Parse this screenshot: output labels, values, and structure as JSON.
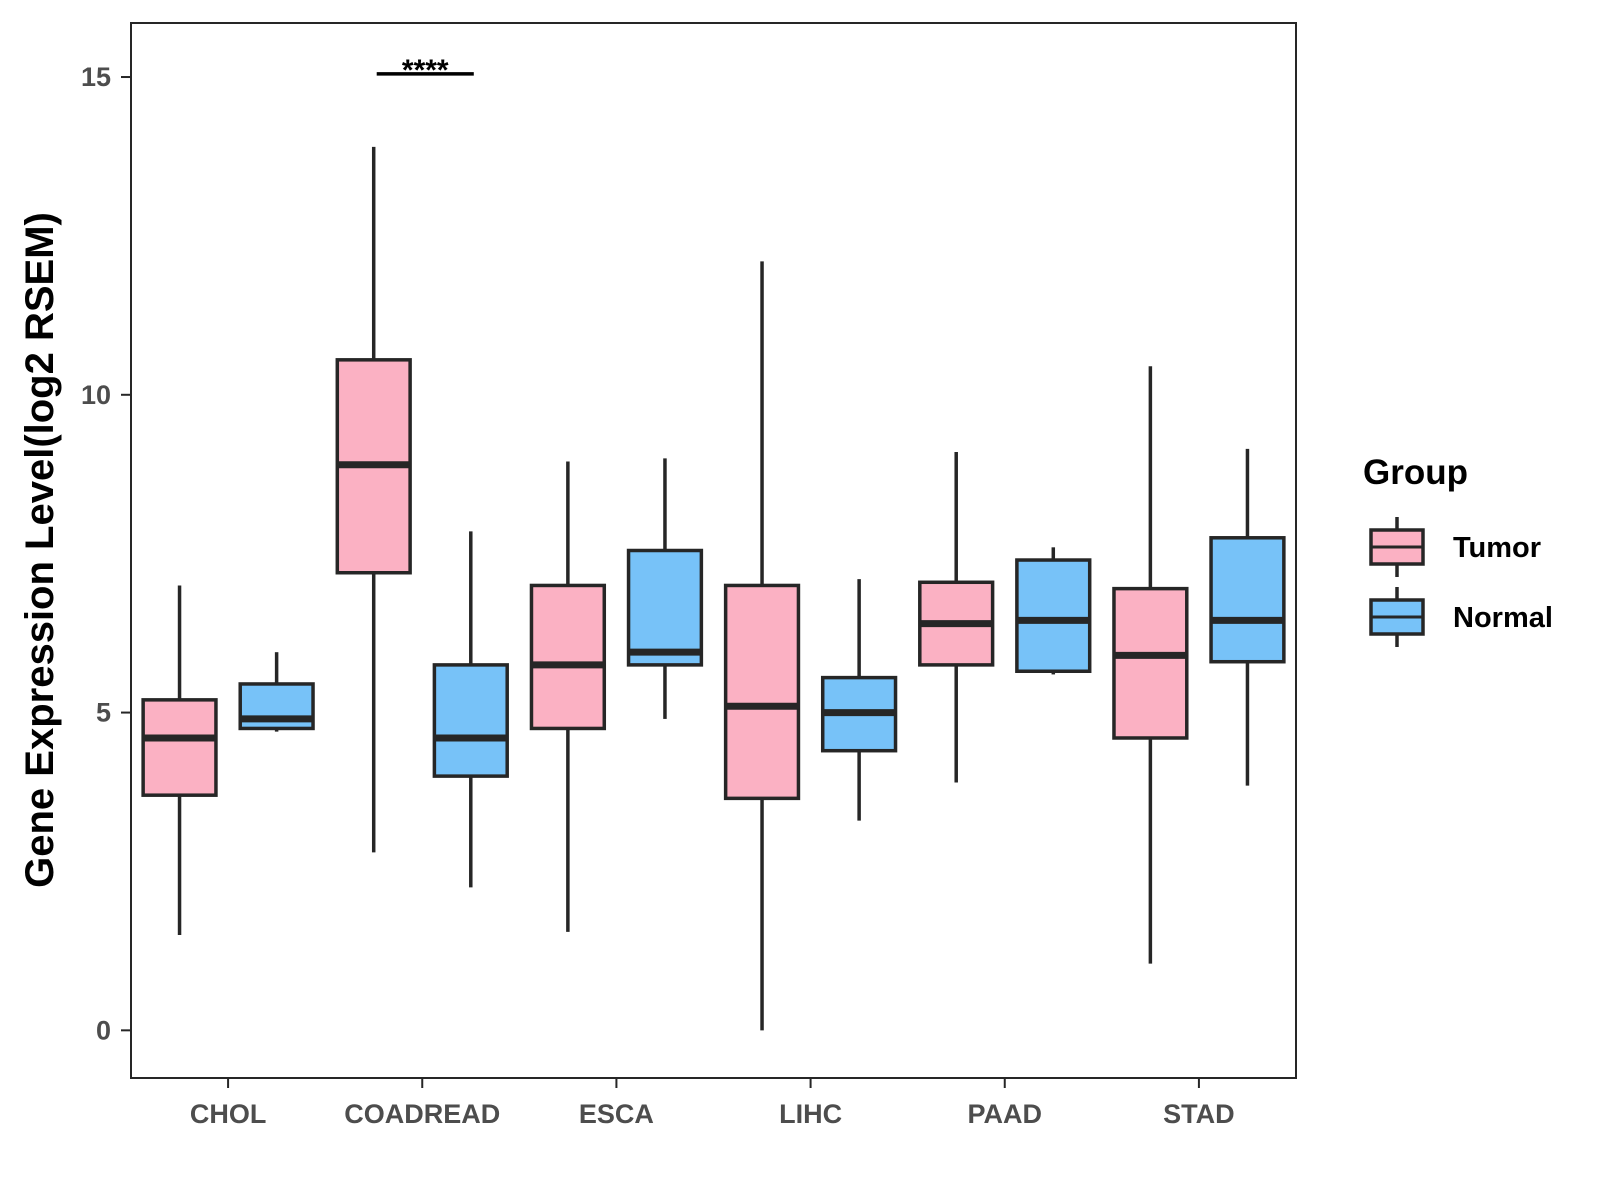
{
  "chart_data": {
    "type": "boxplot",
    "title": "",
    "xlabel": "",
    "ylabel": "Gene Expression Level(log2 RSEM)",
    "ylim": [
      -0.75,
      15.85
    ],
    "yticks": [
      0,
      5,
      10,
      15
    ],
    "ytick_labels": [
      "0",
      "5",
      "10",
      "15"
    ],
    "grid": false,
    "categories": [
      "CHOL",
      "COADREAD",
      "ESCA",
      "LIHC",
      "PAAD",
      "STAD"
    ],
    "legend": {
      "title": "Group",
      "position": "right",
      "entries": [
        "Tumor",
        "Normal"
      ]
    },
    "colors": {
      "Tumor": "#fbb1c3",
      "Normal": "#77c2f8",
      "outline": "#262626"
    },
    "series": [
      {
        "name": "Tumor",
        "boxes": [
          {
            "min": 1.5,
            "q1": 3.7,
            "median": 4.6,
            "q3": 5.2,
            "max": 7.0
          },
          {
            "min": 2.8,
            "q1": 7.2,
            "median": 8.9,
            "q3": 10.55,
            "max": 13.9
          },
          {
            "min": 1.55,
            "q1": 4.75,
            "median": 5.75,
            "q3": 7.0,
            "max": 8.95
          },
          {
            "min": 0.0,
            "q1": 3.65,
            "median": 5.1,
            "q3": 7.0,
            "max": 12.1
          },
          {
            "min": 3.9,
            "q1": 5.75,
            "median": 6.4,
            "q3": 7.05,
            "max": 9.1
          },
          {
            "min": 1.05,
            "q1": 4.6,
            "median": 5.9,
            "q3": 6.95,
            "max": 10.45
          }
        ]
      },
      {
        "name": "Normal",
        "boxes": [
          {
            "min": 4.7,
            "q1": 4.75,
            "median": 4.9,
            "q3": 5.45,
            "max": 5.95
          },
          {
            "min": 2.25,
            "q1": 4.0,
            "median": 4.6,
            "q3": 5.75,
            "max": 7.85
          },
          {
            "min": 4.9,
            "q1": 5.75,
            "median": 5.95,
            "q3": 7.55,
            "max": 9.0
          },
          {
            "min": 3.3,
            "q1": 4.4,
            "median": 5.0,
            "q3": 5.55,
            "max": 7.1
          },
          {
            "min": 5.6,
            "q1": 5.65,
            "median": 6.45,
            "q3": 7.4,
            "max": 7.6
          },
          {
            "min": 3.85,
            "q1": 5.8,
            "median": 6.45,
            "q3": 7.75,
            "max": 9.15
          }
        ]
      }
    ],
    "annotations": [
      {
        "category": "COADREAD",
        "label": "****",
        "y": 15.05
      }
    ]
  }
}
